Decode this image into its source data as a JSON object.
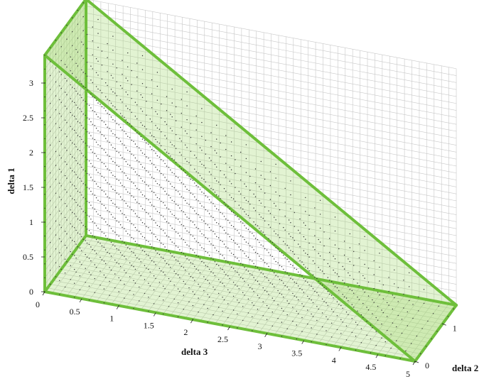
{
  "chart_data": {
    "type": "3d-surface",
    "title": "",
    "axes": {
      "x": {
        "label": "delta 3",
        "range": [
          0,
          5
        ],
        "ticks": [
          "0",
          "0.5",
          "1",
          "1.5",
          "2",
          "2.5",
          "3",
          "3.5",
          "4",
          "4.5",
          "5"
        ]
      },
      "y": {
        "label": "delta 2",
        "range": [
          0,
          1.5
        ],
        "ticks": [
          "0",
          "1"
        ]
      },
      "z": {
        "label": "delta 1",
        "range": [
          0,
          3.4
        ],
        "ticks": [
          "0",
          "0.5",
          "1",
          "1.5",
          "2",
          "2.5",
          "3"
        ]
      }
    },
    "grid": true,
    "region": {
      "description": "feasible polytope",
      "vertices": [
        {
          "delta3": 0,
          "delta2": 0,
          "delta1": 0
        },
        {
          "delta3": 5,
          "delta2": 0,
          "delta1": 0
        },
        {
          "delta3": 0,
          "delta2": 1.5,
          "delta1": 0
        },
        {
          "delta3": 5,
          "delta2": 1.5,
          "delta1": 0
        },
        {
          "delta3": 0,
          "delta2": 0,
          "delta1": 3.4
        },
        {
          "delta3": 0,
          "delta2": 1.5,
          "delta1": 3.4
        }
      ],
      "edge_color": "#6ebf3b",
      "fill_color": "#9fd66a"
    }
  }
}
